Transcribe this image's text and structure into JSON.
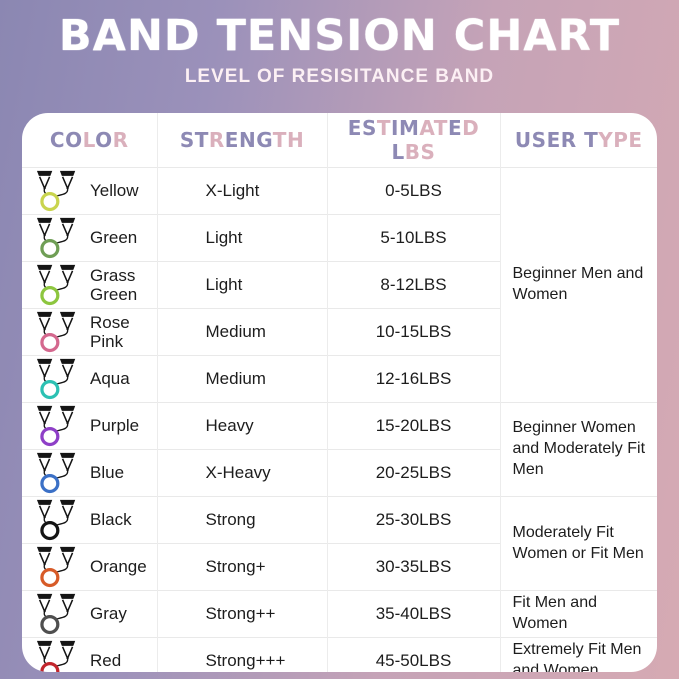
{
  "header": {
    "title": "BAND TENSION CHART",
    "subtitle": "LEVEL OF RESISITANCE BAND"
  },
  "theme": {
    "bg_gradient_left": "#8b87b2",
    "bg_gradient_right": "#d6aab3",
    "card_bg": "#ffffff",
    "header_letter_purple": "#8d89b4",
    "header_letter_pink": "#dab0bc",
    "grid_line": "#e9e9e9",
    "body_text": "#1d1d1d",
    "handle_color": "#151515"
  },
  "table": {
    "columns": [
      {
        "label": "COLOR",
        "tones": "PPKPK"
      },
      {
        "label": "STRENGTH",
        "tones": "PPKPPPKK"
      },
      {
        "label": "ESTIMATED LBS",
        "tones": "PPKPPKKPK PKK"
      },
      {
        "label": "USER TYPE",
        "tones": "PPPP PKKK"
      }
    ],
    "rows": [
      {
        "color": "Yellow",
        "band_hex": "#c9d44e",
        "strength": "X-Light",
        "lbs": "0-5LBS"
      },
      {
        "color": "Green",
        "band_hex": "#6f9e55",
        "strength": "Light",
        "lbs": "5-10LBS"
      },
      {
        "color": "Grass Green",
        "band_hex": "#8dc63f",
        "strength": "Light",
        "lbs": "8-12LBS"
      },
      {
        "color": "Rose Pink",
        "band_hex": "#d4688e",
        "strength": "Medium",
        "lbs": "10-15LBS"
      },
      {
        "color": "Aqua",
        "band_hex": "#2cc1b3",
        "strength": "Medium",
        "lbs": "12-16LBS"
      },
      {
        "color": "Purple",
        "band_hex": "#8e3fc7",
        "strength": "Heavy",
        "lbs": "15-20LBS"
      },
      {
        "color": "Blue",
        "band_hex": "#3b70c6",
        "strength": "X-Heavy",
        "lbs": "20-25LBS"
      },
      {
        "color": "Black",
        "band_hex": "#141414",
        "strength": "Strong",
        "lbs": "25-30LBS"
      },
      {
        "color": "Orange",
        "band_hex": "#d75b28",
        "strength": "Strong+",
        "lbs": "30-35LBS"
      },
      {
        "color": "Gray",
        "band_hex": "#4f4f4f",
        "strength": "Strong++",
        "lbs": "35-40LBS"
      },
      {
        "color": "Red",
        "band_hex": "#c2262d",
        "strength": "Strong+++",
        "lbs": "45-50LBS"
      }
    ],
    "user_types": [
      {
        "label": "Beginner Men and Women",
        "rowspan": 5
      },
      {
        "label": "Beginner Women and Moderately Fit Men",
        "rowspan": 2
      },
      {
        "label": "Moderately Fit Women or Fit Men",
        "rowspan": 2
      },
      {
        "label": "Fit Men and Women",
        "rowspan": 1
      },
      {
        "label": "Extremely Fit Men and Women",
        "rowspan": 1
      }
    ]
  },
  "chart_data": {
    "type": "table",
    "title": "BAND TENSION CHART",
    "subtitle": "LEVEL OF RESISITANCE BAND",
    "columns": [
      "COLOR",
      "STRENGTH",
      "ESTIMATED LBS",
      "USER TYPE"
    ],
    "rows": [
      [
        "Yellow",
        "X-Light",
        "0-5LBS",
        "Beginner Men and Women"
      ],
      [
        "Green",
        "Light",
        "5-10LBS",
        "Beginner Men and Women"
      ],
      [
        "Grass Green",
        "Light",
        "8-12LBS",
        "Beginner Men and Women"
      ],
      [
        "Rose Pink",
        "Medium",
        "10-15LBS",
        "Beginner Men and Women"
      ],
      [
        "Aqua",
        "Medium",
        "12-16LBS",
        "Beginner Men and Women"
      ],
      [
        "Purple",
        "Heavy",
        "15-20LBS",
        "Beginner Women and Moderately Fit Men"
      ],
      [
        "Blue",
        "X-Heavy",
        "20-25LBS",
        "Beginner Women and Moderately Fit Men"
      ],
      [
        "Black",
        "Strong",
        "25-30LBS",
        "Moderately Fit Women or Fit Men"
      ],
      [
        "Orange",
        "Strong+",
        "30-35LBS",
        "Moderately Fit Women or Fit Men"
      ],
      [
        "Gray",
        "Strong++",
        "35-40LBS",
        "Fit Men and Women"
      ],
      [
        "Red",
        "Strong+++",
        "45-50LBS",
        "Extremely Fit Men and Women"
      ]
    ],
    "band_colors_hex": {
      "Yellow": "#c9d44e",
      "Green": "#6f9e55",
      "Grass Green": "#8dc63f",
      "Rose Pink": "#d4688e",
      "Aqua": "#2cc1b3",
      "Purple": "#8e3fc7",
      "Blue": "#3b70c6",
      "Black": "#141414",
      "Orange": "#d75b28",
      "Gray": "#4f4f4f",
      "Red": "#c2262d"
    }
  }
}
